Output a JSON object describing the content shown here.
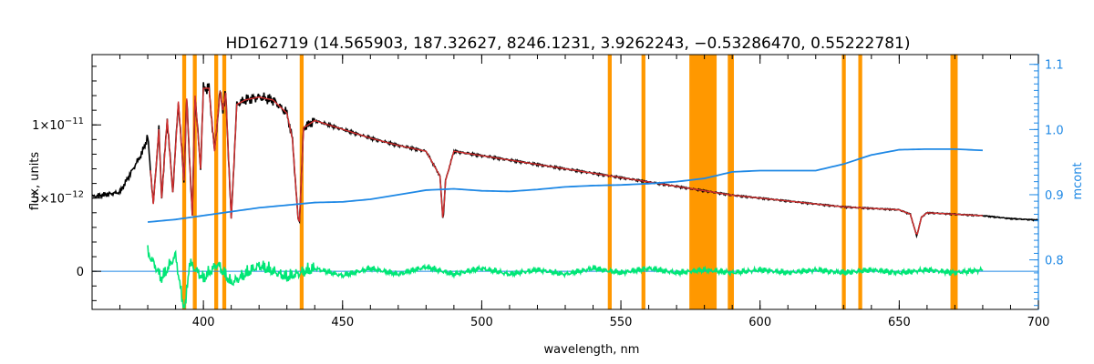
{
  "chart_data": {
    "type": "line",
    "title": "HD162719   (14.565903, 187.32627, 8246.1231, 3.9262243, −0.53286470, 0.55222781)",
    "xlabel": "wavelength, nm",
    "ylabel": "flux, units",
    "y2label": "mcont",
    "xlim": [
      360,
      700
    ],
    "ylim": [
      -2.6e-12,
      1.48e-11
    ],
    "y2lim": [
      0.724,
      1.115
    ],
    "x_ticks": [
      400,
      450,
      500,
      550,
      600,
      650,
      700
    ],
    "y_ticks": [
      {
        "value": 0,
        "label": "0"
      },
      {
        "value": 5e-12,
        "label": "5×10",
        "exp": "−12"
      },
      {
        "value": 1e-11,
        "label": "1×10",
        "exp": "−11"
      }
    ],
    "y2_ticks": [
      0.8,
      0.9,
      1.0,
      1.1
    ],
    "grid": false,
    "colors": {
      "observed": "#000000",
      "model": "#d32f2f",
      "continuum": "#1e88e5",
      "residual": "#00e676",
      "mask": "#ff9800",
      "axis2": "#1e88e5"
    },
    "mask_bands": [
      [
        392.4,
        393.8
      ],
      [
        396.2,
        397.6
      ],
      [
        403.9,
        405.3
      ],
      [
        406.8,
        408.2
      ],
      [
        434.6,
        436.0
      ],
      [
        545.3,
        546.7
      ],
      [
        557.4,
        558.8
      ],
      [
        574.6,
        584.4
      ],
      [
        588.4,
        590.6
      ],
      [
        629.4,
        630.8
      ],
      [
        635.3,
        636.7
      ],
      [
        668.4,
        671.0
      ]
    ],
    "continuum": {
      "x": [
        380,
        390,
        400,
        410,
        420,
        430,
        440,
        450,
        460,
        470,
        480,
        490,
        500,
        510,
        520,
        530,
        540,
        550,
        560,
        570,
        580,
        585,
        590,
        600,
        610,
        620,
        630,
        640,
        650,
        660,
        670,
        680
      ],
      "y": [
        0.858,
        0.862,
        0.868,
        0.874,
        0.88,
        0.884,
        0.888,
        0.889,
        0.893,
        0.9,
        0.907,
        0.909,
        0.906,
        0.905,
        0.908,
        0.912,
        0.914,
        0.915,
        0.917,
        0.92,
        0.925,
        0.93,
        0.935,
        0.937,
        0.937,
        0.937,
        0.947,
        0.961,
        0.969,
        0.97,
        0.97,
        0.968
      ]
    },
    "spectrum": {
      "x": [
        360,
        370,
        378,
        380,
        382,
        384,
        385,
        387,
        389,
        391,
        393,
        394,
        396,
        397,
        399,
        400,
        402,
        404,
        406,
        407,
        408,
        410,
        412,
        415,
        420,
        425,
        430,
        432,
        434,
        434.5,
        436,
        440,
        450,
        460,
        470,
        480,
        485,
        486.1,
        487,
        490,
        500,
        510,
        520,
        530,
        540,
        550,
        560,
        570,
        580,
        590,
        600,
        610,
        620,
        630,
        640,
        650,
        654,
        656.3,
        658,
        660,
        670,
        680,
        690,
        700
      ],
      "y": [
        5.1e-12,
        5.4e-12,
        8.1e-12,
        9.2e-12,
        4.6e-12,
        9.7e-12,
        5e-12,
        1.04e-11,
        5.4e-12,
        1.16e-11,
        6.2e-12,
        1.18e-11,
        3.8e-12,
        1.2e-11,
        7e-12,
        1.25e-11,
        1.25e-11,
        8.2e-12,
        1.23e-11,
        1.1e-11,
        1.22e-11,
        3.6e-12,
        1.14e-11,
        1.17e-11,
        1.19e-11,
        1.17e-11,
        1.08e-11,
        9e-12,
        3.6e-12,
        3.4e-12,
        9.8e-12,
        1.03e-11,
        9.7e-12,
        9.1e-12,
        8.6e-12,
        8.2e-12,
        6.5e-12,
        3.4e-12,
        6.2e-12,
        8.2e-12,
        7.9e-12,
        7.6e-12,
        7.3e-12,
        7e-12,
        6.7e-12,
        6.4e-12,
        6.1e-12,
        5.8e-12,
        5.5e-12,
        5.2e-12,
        5e-12,
        4.8e-12,
        4.6e-12,
        4.4e-12,
        4.3e-12,
        4.2e-12,
        3.9e-12,
        2.4e-12,
        3.7e-12,
        4e-12,
        3.9e-12,
        3.8e-12,
        3.6e-12,
        3.5e-12
      ]
    },
    "model_range": [
      381,
      680
    ],
    "residual": {
      "x": [
        360,
        380,
        385,
        390,
        392.5,
        393.5,
        395,
        400,
        405,
        410,
        420,
        430,
        440,
        450,
        460,
        470,
        480,
        490,
        500,
        510,
        520,
        530,
        540,
        550,
        560,
        570,
        580,
        590,
        600,
        610,
        620,
        630,
        640,
        650,
        660,
        670,
        680,
        690,
        700
      ],
      "y": [
        0,
        1.3e-12,
        -5e-13,
        1.1e-12,
        -2.1e-12,
        -2.4e-12,
        6e-13,
        -5e-13,
        5e-13,
        -8e-13,
        4e-13,
        -4e-13,
        2e-13,
        -3e-13,
        2e-13,
        -2e-13,
        3e-13,
        -2e-13,
        2e-13,
        -2e-13,
        1e-13,
        -2e-13,
        2e-13,
        -1e-13,
        2e-13,
        -1e-13,
        1e-13,
        -1e-13,
        1e-13,
        -1e-13,
        1e-13,
        -1e-13,
        1e-13,
        -1e-13,
        1e-13,
        -1e-13,
        1e-13,
        0,
        0
      ]
    }
  }
}
